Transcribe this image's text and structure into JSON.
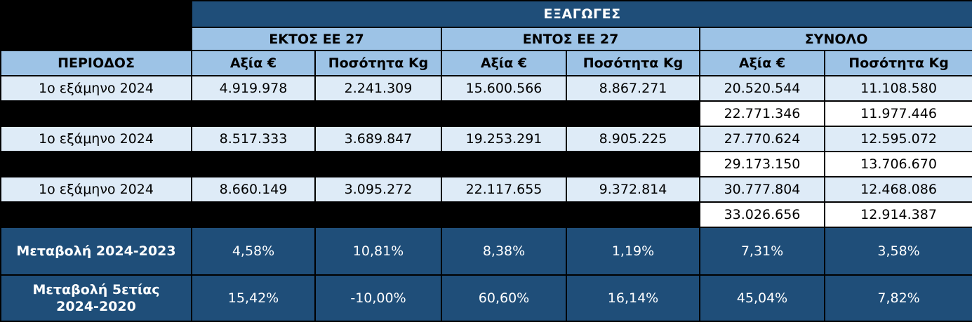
{
  "title": "ΕΞΑΓΩΓΕΣ",
  "groups": [
    "ΕΚΤΟΣ ΕΕ 27",
    "ΕΝΤΟΣ ΕΕ 27",
    "ΣΥΝΟΛΟ"
  ],
  "period_header": "ΠΕΡΙΟΔΟΣ",
  "subheaders": [
    "Αξία €",
    "Ποσότητα Kg",
    "Αξία €",
    "Ποσότητα Kg",
    "Αξία €",
    "Ποσότητα Kg"
  ],
  "rows": [
    {
      "period": "1ο εξάμηνο 2024",
      "values": [
        "4.919.978",
        "2.241.309",
        "15.600.566",
        "8.867.271",
        "20.520.544",
        "11.108.580"
      ]
    },
    {
      "period": "",
      "values": [
        "",
        "",
        "",
        "",
        "22.771.346",
        "11.977.446"
      ]
    },
    {
      "period": "1ο εξάμηνο 2024",
      "values": [
        "8.517.333",
        "3.689.847",
        "19.253.291",
        "8.905.225",
        "27.770.624",
        "12.595.072"
      ]
    },
    {
      "period": "",
      "values": [
        "",
        "",
        "",
        "",
        "29.173.150",
        "13.706.670"
      ]
    },
    {
      "period": "1ο εξάμηνο 2024",
      "values": [
        "8.660.149",
        "3.095.272",
        "22.117.655",
        "9.372.814",
        "30.777.804",
        "12.468.086"
      ]
    },
    {
      "period": "",
      "values": [
        "",
        "",
        "",
        "",
        "33.026.656",
        "12.914.387"
      ]
    }
  ],
  "changes": [
    {
      "label": "Μεταβολή 2024-2023",
      "values": [
        "4,58%",
        "10,81%",
        "8,38%",
        "1,19%",
        "7,31%",
        "3,58%"
      ]
    },
    {
      "label_line1": "Μεταβολή 5ετίας",
      "label_line2": "2024-2020",
      "values": [
        "15,42%",
        "-10,00%",
        "60,60%",
        "16,14%",
        "45,04%",
        "7,82%"
      ]
    }
  ],
  "colors": {
    "dark_blue": "#1f4e79",
    "header_blue": "#9dc3e6",
    "row_light": "#deebf7"
  }
}
